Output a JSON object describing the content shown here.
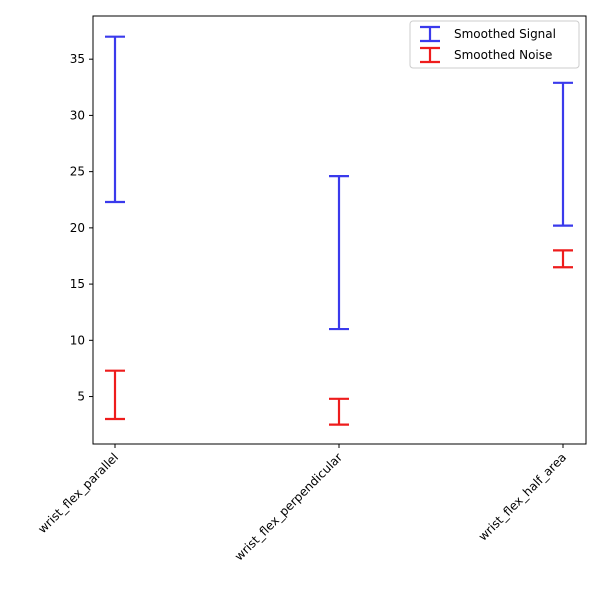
{
  "chart_data": {
    "type": "errorbar",
    "categories": [
      "wrist_flex_parallel",
      "wrist_flex_perpendicular",
      "wrist_flex_half_area"
    ],
    "series": [
      {
        "name": "Smoothed Signal",
        "color": "#3a3aec",
        "ranges": [
          [
            22.3,
            37.0
          ],
          [
            11.0,
            24.6
          ],
          [
            20.2,
            32.9
          ]
        ]
      },
      {
        "name": "Smoothed Noise",
        "color": "#ee1c1c",
        "ranges": [
          [
            3.0,
            7.3
          ],
          [
            2.5,
            4.8
          ],
          [
            16.5,
            18.0
          ]
        ]
      }
    ],
    "yticks": [
      5,
      10,
      15,
      20,
      25,
      30,
      35
    ],
    "ylim": [
      0.78,
      38.84
    ],
    "xlabel": "",
    "ylabel": "",
    "title": "",
    "legend_position": "top-right",
    "grid": false
  }
}
